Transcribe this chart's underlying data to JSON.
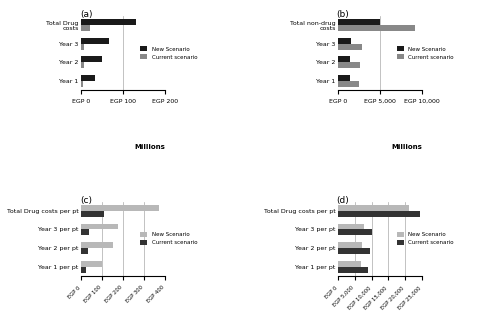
{
  "panel_a": {
    "categories": [
      "Total Drug\ncosts",
      "Year 3",
      "Year 2",
      "Year 1"
    ],
    "new_scenario": [
      130,
      65,
      50,
      32
    ],
    "current_scenario": [
      20,
      7,
      5,
      4
    ],
    "xlim": [
      0,
      200
    ],
    "xticks": [
      0,
      100,
      200
    ],
    "xticklabels": [
      "EGP 0",
      "EGP 100",
      "EGP 200"
    ],
    "xlabel": "Millions",
    "label": "(a)",
    "color_new": "#1a1a1a",
    "color_current": "#888888",
    "new_on_top": true
  },
  "panel_b": {
    "categories": [
      "Total non-drug\ncosts",
      "Year 3",
      "Year 2",
      "Year 1"
    ],
    "new_scenario": [
      5000,
      1500,
      1400,
      1400
    ],
    "current_scenario": [
      9200,
      2800,
      2600,
      2500
    ],
    "xlim": [
      0,
      10000
    ],
    "xticks": [
      0,
      5000,
      10000
    ],
    "xticklabels": [
      "EGP 0",
      "EGP 5,000",
      "EGP 10,000"
    ],
    "xlabel": "Millions",
    "label": "(b)",
    "color_new": "#1a1a1a",
    "color_current": "#888888",
    "new_on_top": true
  },
  "panel_c": {
    "categories": [
      "Total Drug costs per pt",
      "Year 3 per pt",
      "Year 2 per pt",
      "Year 1 per pt"
    ],
    "new_scenario": [
      370,
      175,
      150,
      100
    ],
    "current_scenario": [
      110,
      35,
      30,
      22
    ],
    "xlim": [
      0,
      400
    ],
    "xticks": [
      0,
      100,
      200,
      300,
      400
    ],
    "xticklabels": [
      "EGP 0",
      "EGP 100",
      "EGP 200",
      "EGP 300",
      "EGP 400"
    ],
    "xlabel": "",
    "label": "(c)",
    "color_new": "#b8b8b8",
    "color_current": "#333333",
    "new_on_top": true
  },
  "panel_d": {
    "categories": [
      "Total Drug costs per pt",
      "Year 3 per pt",
      "Year 2 per pt",
      "Year 1 per pt"
    ],
    "new_scenario": [
      21000,
      7800,
      7200,
      6800
    ],
    "current_scenario": [
      24500,
      10000,
      9500,
      9000
    ],
    "xlim": [
      0,
      25000
    ],
    "xticks": [
      0,
      5000,
      10000,
      15000,
      20000,
      25000
    ],
    "xticklabels": [
      "EGP 0",
      "EGP 5,000",
      "EGP 10,000",
      "EGP 15,000",
      "EGP 20,000",
      "EGP 25,000"
    ],
    "xlabel": "",
    "label": "(d)",
    "color_new": "#b8b8b8",
    "color_current": "#333333",
    "new_on_top": true
  },
  "bar_height": 0.32,
  "background": "#ffffff",
  "legend_entries_ab": [
    [
      "New Scenario",
      "#1a1a1a"
    ],
    [
      "Current scenario",
      "#888888"
    ]
  ],
  "legend_entries_cd": [
    [
      "New Scenario",
      "#b8b8b8"
    ],
    [
      "Current scenario",
      "#333333"
    ]
  ]
}
